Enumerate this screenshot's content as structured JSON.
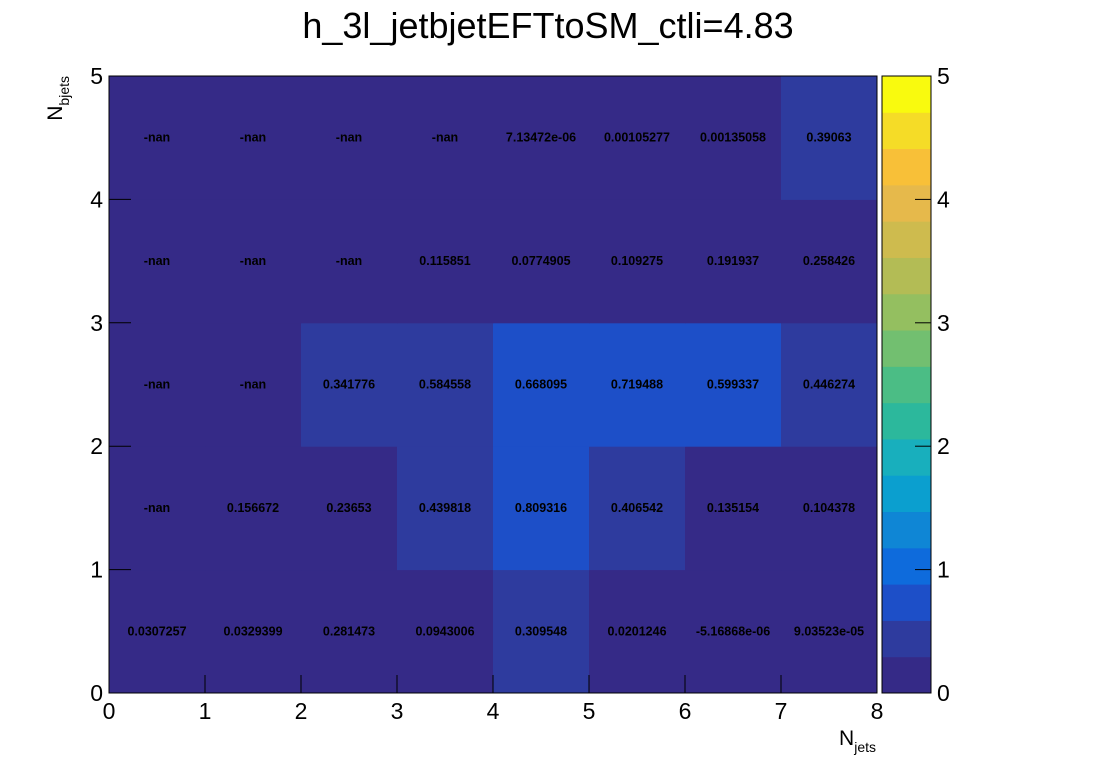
{
  "chart_data": {
    "type": "heatmap",
    "title": "h_3l_jetbjetEFTtoSM_ctli=4.83",
    "xlabel_main": "N",
    "xlabel_sub": "jets",
    "ylabel_main": "N",
    "ylabel_sub": "bjets",
    "xlim": [
      0,
      8
    ],
    "ylim": [
      0,
      5
    ],
    "xticks": [
      "0",
      "1",
      "2",
      "3",
      "4",
      "5",
      "6",
      "7",
      "8"
    ],
    "yticks": [
      "0",
      "1",
      "2",
      "3",
      "4",
      "5"
    ],
    "zlim": [
      0,
      5
    ],
    "zticks": [
      "0",
      "1",
      "2",
      "3",
      "4",
      "5"
    ],
    "colormap": [
      "#352a87",
      "#2e3b9e",
      "#1d4fc8",
      "#0e6bdc",
      "#0f86d5",
      "#0b9fcf",
      "#18afbd",
      "#2cb89c",
      "#4bbd85",
      "#72bf70",
      "#94bf60",
      "#b3bc55",
      "#cebb4e",
      "#e6b94b",
      "#f8c038",
      "#f5dc27",
      "#f9fa0e"
    ],
    "cells": [
      [
        "0.0307257",
        "0.0329399",
        "0.281473",
        "0.0943006",
        "0.309548",
        "0.0201246",
        "-5.16868e-06",
        "9.03523e-05"
      ],
      [
        "-nan",
        "0.156672",
        "0.23653",
        "0.439818",
        "0.809316",
        "0.406542",
        "0.135154",
        "0.104378"
      ],
      [
        "-nan",
        "-nan",
        "0.341776",
        "0.584558",
        "0.668095",
        "0.719488",
        "0.599337",
        "0.446274"
      ],
      [
        "-nan",
        "-nan",
        "-nan",
        "0.115851",
        "0.0774905",
        "0.109275",
        "0.191937",
        "0.258426"
      ],
      [
        "-nan",
        "-nan",
        "-nan",
        "-nan",
        "7.13472e-06",
        "0.00105277",
        "0.00135058",
        "0.39063"
      ]
    ]
  }
}
